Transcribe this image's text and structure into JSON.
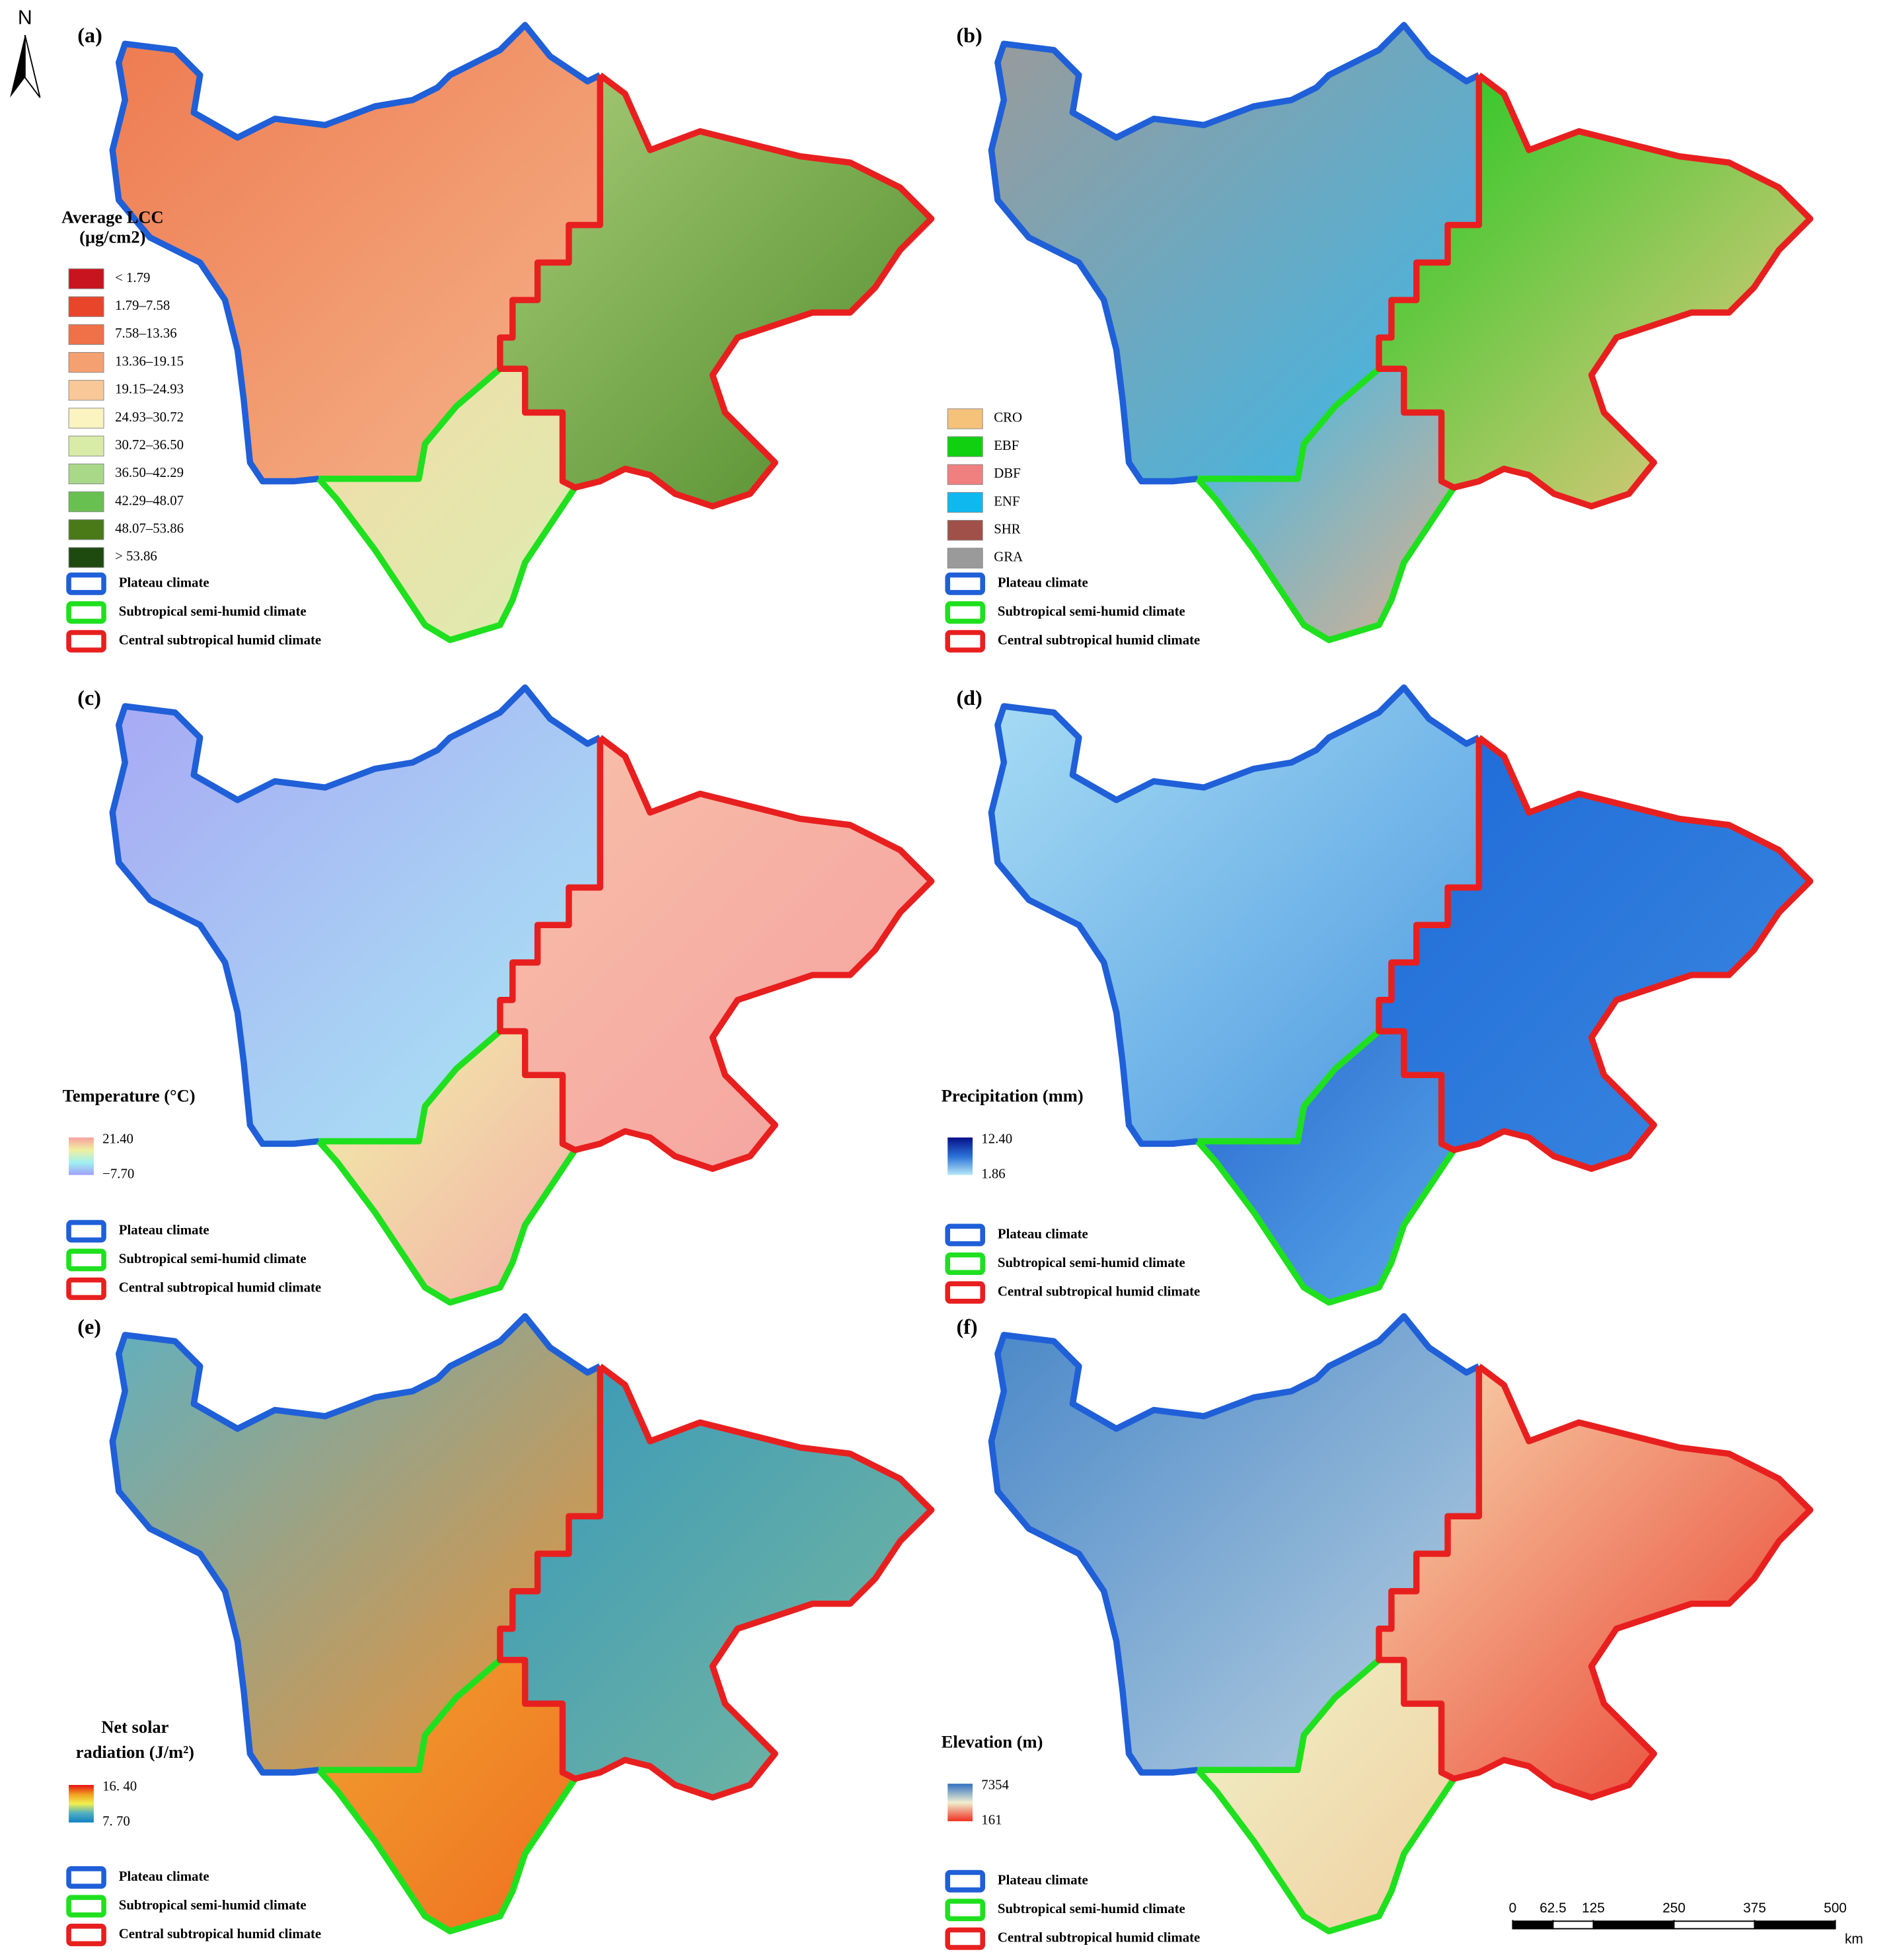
{
  "north": "N",
  "climate_legend": [
    {
      "label": "Plateau climate",
      "color": "#1f5fd8"
    },
    {
      "label": "Subtropical semi-humid climate",
      "color": "#1fe01f"
    },
    {
      "label": "Central subtropical humid climate",
      "color": "#e81f1f"
    }
  ],
  "panels": [
    {
      "label": "(a)",
      "legend_title": [
        "Average LCC",
        "(μg/cm2)"
      ],
      "classes": [
        {
          "label": "< 1.79",
          "color": "#c8141e"
        },
        {
          "label": "1.79–7.58",
          "color": "#e8452a"
        },
        {
          "label": "7.58–13.36",
          "color": "#f07048"
        },
        {
          "label": "13.36–19.15",
          "color": "#f5a070"
        },
        {
          "label": "19.15–24.93",
          "color": "#f8c898"
        },
        {
          "label": "24.93–30.72",
          "color": "#fbf3c0"
        },
        {
          "label": "30.72–36.50",
          "color": "#d8eca8"
        },
        {
          "label": "36.50–42.29",
          "color": "#a8d888"
        },
        {
          "label": "42.29–48.07",
          "color": "#68c050"
        },
        {
          "label": "48.07–53.86",
          "color": "#4a7a18"
        },
        {
          "label": "> 53.86",
          "color": "#1e4a10"
        }
      ]
    },
    {
      "label": "(b)",
      "classes": [
        {
          "label": "CRO",
          "color": "#f5c27a"
        },
        {
          "label": "EBF",
          "color": "#10d010"
        },
        {
          "label": "DBF",
          "color": "#f08080"
        },
        {
          "label": "ENF",
          "color": "#10b8f0"
        },
        {
          "label": "SHR",
          "color": "#a05048"
        },
        {
          "label": "GRA",
          "color": "#9a9a9a"
        }
      ]
    },
    {
      "label": "(c)",
      "legend_title": [
        "Temperature (°C)"
      ],
      "ramp": {
        "max": "21.40",
        "min": "−7.70",
        "colors": [
          "#f8a0a0",
          "#f0f0a0",
          "#a0f0f0",
          "#a0a0f8"
        ]
      }
    },
    {
      "label": "(d)",
      "legend_title": [
        "Precipitation (mm)"
      ],
      "ramp": {
        "max": "12.40",
        "min": "1.86",
        "colors": [
          "#08108a",
          "#2a70d8",
          "#b8e8f8"
        ]
      }
    },
    {
      "label": "(e)",
      "legend_title": [
        "Net solar",
        "radiation (J/m²)"
      ],
      "ramp": {
        "max": "16. 40",
        "min": "7. 70",
        "colors": [
          "#e81010",
          "#f0a020",
          "#f0f050",
          "#50b0c0",
          "#1080c0"
        ]
      }
    },
    {
      "label": "(f)",
      "legend_title": [
        "Elevation (m)"
      ],
      "ramp": {
        "max": "7354",
        "min": "161",
        "colors": [
          "#3070c0",
          "#f0f0d0",
          "#f03020"
        ]
      }
    }
  ],
  "scale_bar": {
    "ticks": [
      0,
      62.5,
      125,
      250,
      375,
      500
    ],
    "unit": "km"
  }
}
